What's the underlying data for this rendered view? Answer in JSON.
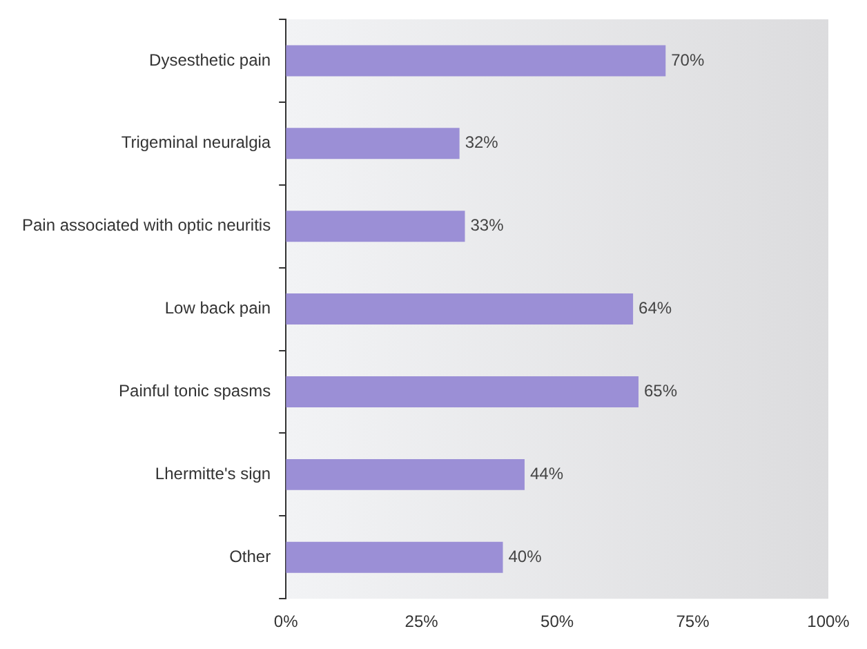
{
  "chart_data": {
    "type": "bar",
    "orientation": "horizontal",
    "categories": [
      "Dysesthetic pain",
      "Trigeminal neuralgia",
      "Pain associated with optic neuritis",
      "Low back pain",
      "Painful tonic spasms",
      "Lhermitte's sign",
      "Other"
    ],
    "values": [
      70,
      32,
      33,
      64,
      65,
      44,
      40
    ],
    "color": "#9b8fd6",
    "value_labels": [
      "70%",
      "32%",
      "33%",
      "64%",
      "65%",
      "44%",
      "40%"
    ],
    "xlim": [
      0,
      100
    ],
    "xticks": [
      {
        "value": 0,
        "label": "0%"
      },
      {
        "value": 25,
        "label": "25%"
      },
      {
        "value": 50,
        "label": "50%"
      },
      {
        "value": 75,
        "label": "75%"
      },
      {
        "value": 100,
        "label": "100%"
      }
    ],
    "grid": false,
    "legend": false
  }
}
